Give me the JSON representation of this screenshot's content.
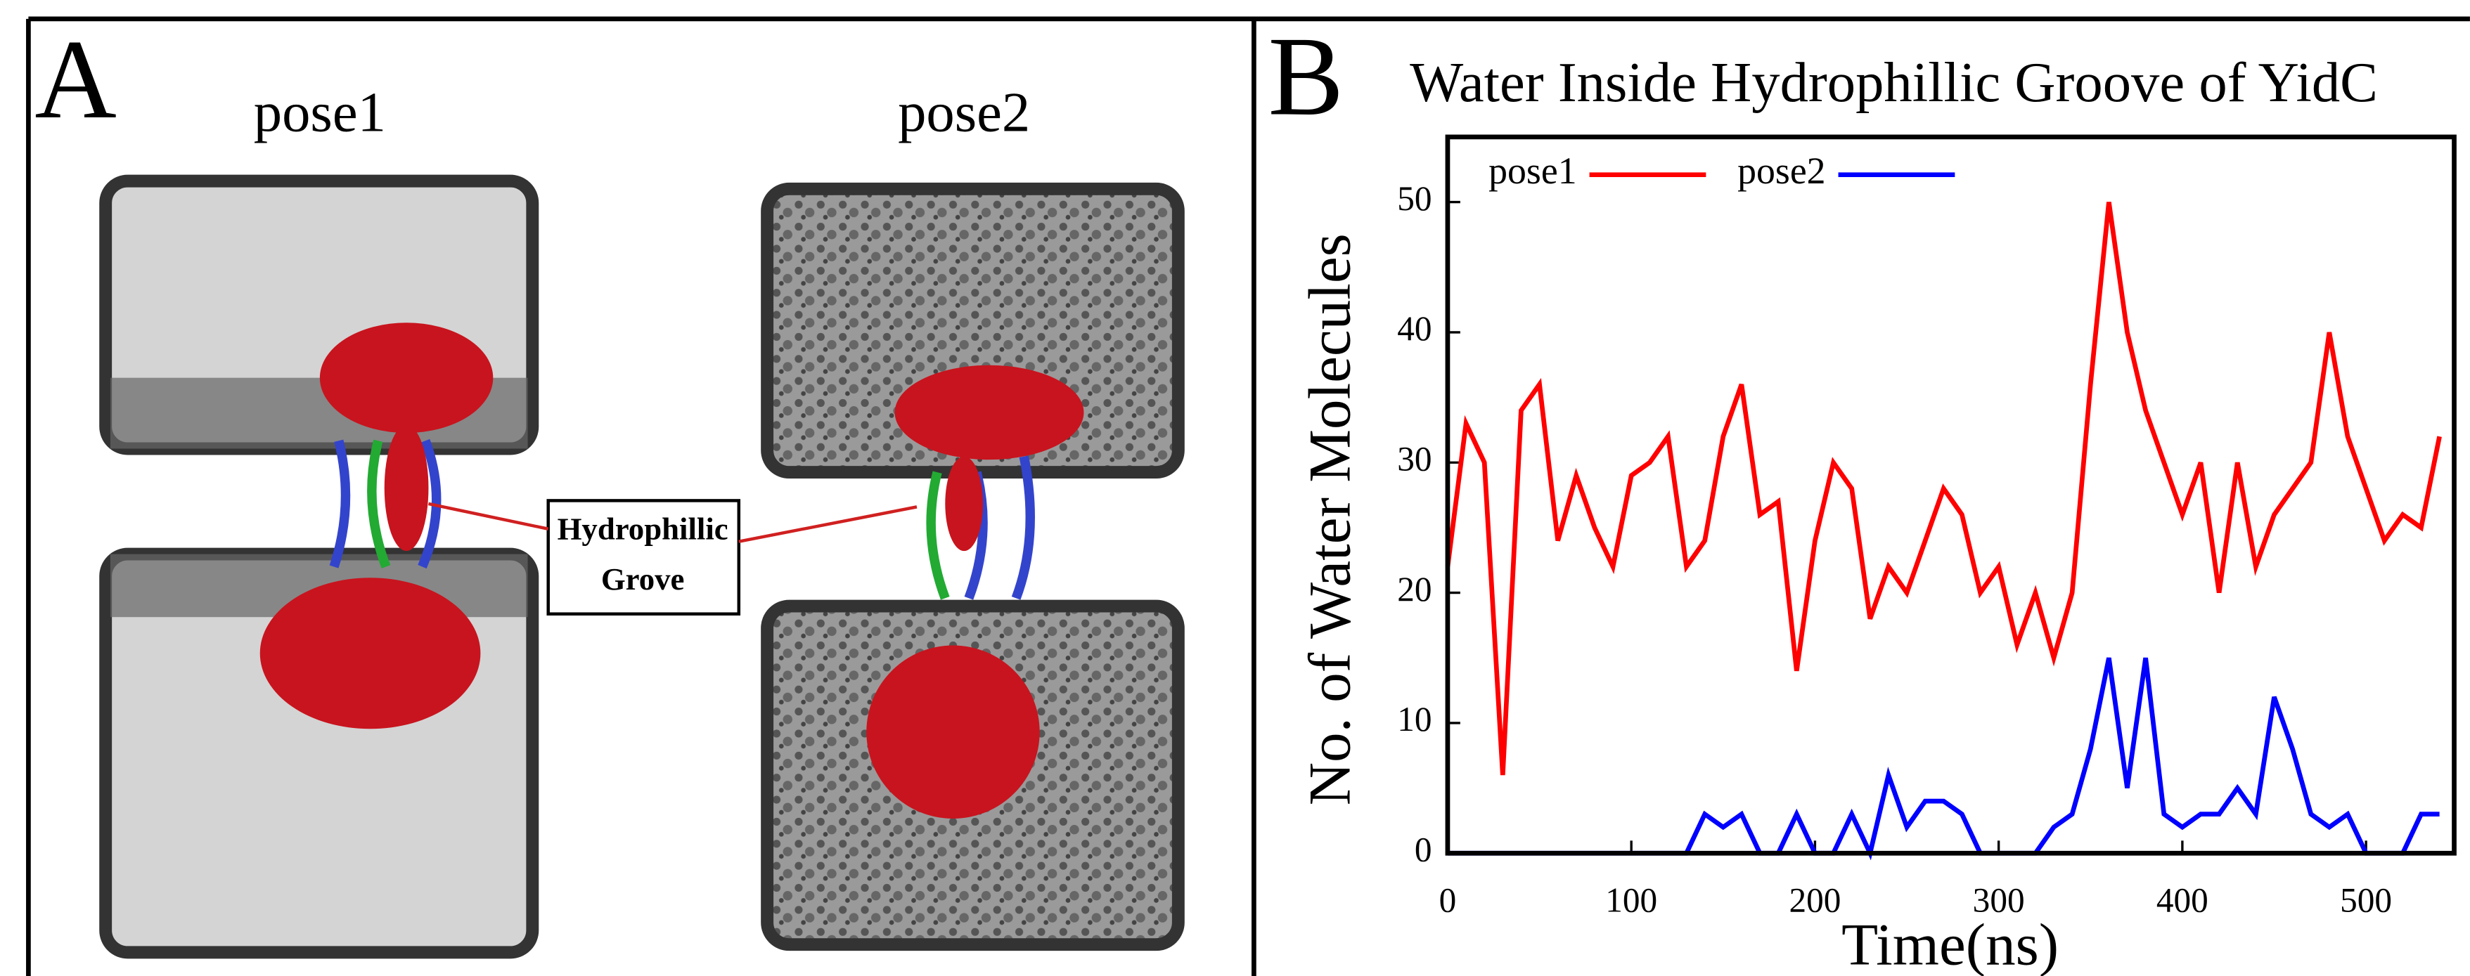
{
  "panel_a": {
    "label": "A",
    "poses": [
      "pose1",
      "pose2"
    ],
    "annotation": [
      "Hydrophillic",
      "Grove"
    ]
  },
  "chart_data": {
    "type": "line",
    "panel_label": "B",
    "title": "Water Inside Hydrophillic Groove of YidC",
    "x_label": "Time(ns)",
    "y_label": "No. of Water Molecules",
    "x": [
      0,
      10,
      20,
      30,
      40,
      50,
      60,
      70,
      80,
      90,
      100,
      110,
      120,
      130,
      140,
      150,
      160,
      170,
      180,
      190,
      200,
      210,
      220,
      230,
      240,
      250,
      260,
      270,
      280,
      290,
      300,
      310,
      320,
      330,
      340,
      350,
      360,
      370,
      380,
      390,
      400,
      410,
      420,
      430,
      440,
      450,
      460,
      470,
      480,
      490,
      500,
      510,
      520,
      530,
      540
    ],
    "series": [
      {
        "name": "pose1",
        "color": "#ff0000",
        "values": [
          22,
          33,
          30,
          6,
          34,
          36,
          24,
          29,
          25,
          22,
          29,
          30,
          32,
          22,
          24,
          32,
          36,
          26,
          27,
          14,
          24,
          30,
          28,
          18,
          22,
          20,
          24,
          28,
          26,
          20,
          22,
          16,
          20,
          15,
          20,
          36,
          50,
          40,
          34,
          30,
          26,
          30,
          20,
          30,
          22,
          26,
          28,
          30,
          40,
          32,
          28,
          24,
          26,
          25,
          32
        ]
      },
      {
        "name": "pose2",
        "color": "#0000ff",
        "values": [
          0,
          0,
          0,
          0,
          0,
          0,
          0,
          0,
          0,
          0,
          0,
          0,
          0,
          0,
          3,
          2,
          3,
          0,
          0,
          3,
          0,
          0,
          3,
          0,
          6,
          2,
          4,
          4,
          3,
          0,
          0,
          0,
          0,
          2,
          3,
          8,
          15,
          5,
          15,
          3,
          2,
          3,
          3,
          5,
          3,
          12,
          8,
          3,
          2,
          3,
          0,
          0,
          0,
          3,
          3
        ]
      }
    ],
    "xlim": [
      0,
      548
    ],
    "ylim": [
      0,
      55
    ],
    "xticks": [
      0,
      100,
      200,
      300,
      400,
      500
    ],
    "yticks": [
      0,
      10,
      20,
      30,
      40,
      50
    ],
    "legend": "top-left"
  }
}
